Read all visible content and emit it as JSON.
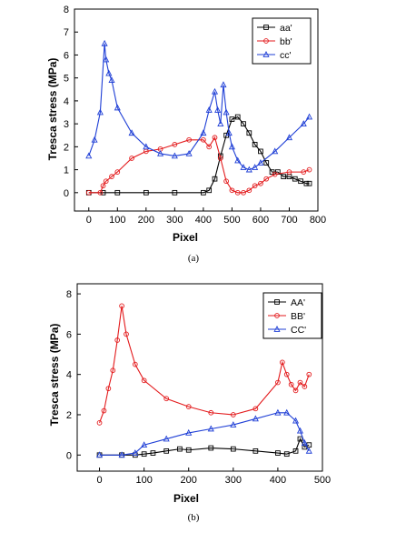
{
  "panels": [
    {
      "caption": "(a)",
      "legend_entries": [
        "aa'",
        "bb'",
        "cc'"
      ]
    },
    {
      "caption": "(b)",
      "legend_entries": [
        "AA'",
        "BB'",
        "CC'"
      ]
    }
  ],
  "colors": {
    "series_1": "#000000",
    "series_2": "#e31a1c",
    "series_3": "#1f3fd6",
    "connector": "#00c000"
  },
  "chart_data": [
    {
      "type": "line",
      "title": "",
      "xlabel": "Pixel",
      "ylabel": "Tresca stress (MPa)",
      "xlim": [
        -50,
        800
      ],
      "ylim": [
        -0.8,
        8
      ],
      "xticks": [
        0,
        100,
        200,
        300,
        400,
        500,
        600,
        700,
        800
      ],
      "yticks": [
        0,
        1,
        2,
        3,
        4,
        5,
        6,
        7,
        8
      ],
      "grid": false,
      "legend": "top-right",
      "series": [
        {
          "name": "aa'",
          "color": "#000000",
          "marker": "square",
          "x": [
            0,
            50,
            100,
            200,
            300,
            400,
            420,
            440,
            460,
            480,
            500,
            520,
            540,
            560,
            580,
            600,
            620,
            640,
            660,
            680,
            700,
            720,
            740,
            760,
            770
          ],
          "y": [
            0,
            0,
            0,
            0,
            0,
            0,
            0.1,
            0.6,
            1.6,
            2.5,
            3.2,
            3.3,
            3.0,
            2.6,
            2.1,
            1.8,
            1.3,
            0.9,
            0.9,
            0.7,
            0.7,
            0.6,
            0.5,
            0.4,
            0.4
          ]
        },
        {
          "name": "bb'",
          "color": "#e31a1c",
          "marker": "circle",
          "x": [
            0,
            40,
            50,
            60,
            80,
            100,
            150,
            200,
            250,
            300,
            350,
            400,
            420,
            440,
            460,
            480,
            500,
            520,
            540,
            560,
            580,
            600,
            620,
            650,
            700,
            750,
            770
          ],
          "y": [
            0,
            0,
            0.3,
            0.5,
            0.7,
            0.9,
            1.5,
            1.8,
            1.9,
            2.1,
            2.3,
            2.3,
            2.0,
            2.4,
            1.5,
            0.5,
            0.1,
            0,
            0,
            0.1,
            0.3,
            0.4,
            0.6,
            0.8,
            0.9,
            0.9,
            1.0
          ]
        },
        {
          "name": "cc'",
          "color": "#1f3fd6",
          "marker": "triangle",
          "x": [
            0,
            20,
            40,
            55,
            60,
            70,
            80,
            100,
            150,
            200,
            250,
            300,
            350,
            400,
            420,
            440,
            450,
            460,
            470,
            480,
            490,
            500,
            520,
            540,
            560,
            580,
            600,
            650,
            700,
            750,
            770
          ],
          "y": [
            1.6,
            2.3,
            3.5,
            6.5,
            5.8,
            5.2,
            4.9,
            3.7,
            2.6,
            2.0,
            1.7,
            1.6,
            1.7,
            2.6,
            3.6,
            4.4,
            3.6,
            3.0,
            4.7,
            3.5,
            2.6,
            2.0,
            1.4,
            1.1,
            1.0,
            1.1,
            1.3,
            1.8,
            2.4,
            3.0,
            3.3
          ]
        }
      ]
    },
    {
      "type": "line",
      "title": "",
      "xlabel": "Pixel",
      "ylabel": "Tresca stress (MPa)",
      "xlim": [
        -50,
        500
      ],
      "ylim": [
        -0.8,
        8.5
      ],
      "xticks": [
        0,
        100,
        200,
        300,
        400,
        500
      ],
      "yticks": [
        0,
        2,
        4,
        6,
        8
      ],
      "grid": false,
      "legend": "top-right",
      "series": [
        {
          "name": "AA'",
          "color": "#000000",
          "marker": "square",
          "x": [
            0,
            50,
            80,
            100,
            120,
            150,
            180,
            200,
            250,
            300,
            350,
            400,
            420,
            440,
            450,
            460,
            470
          ],
          "y": [
            0,
            0,
            0,
            0.05,
            0.1,
            0.2,
            0.3,
            0.25,
            0.35,
            0.3,
            0.2,
            0.1,
            0.05,
            0.2,
            0.8,
            0.4,
            0.5
          ]
        },
        {
          "name": "BB'",
          "color": "#e31a1c",
          "marker": "circle",
          "x": [
            0,
            10,
            20,
            30,
            40,
            50,
            60,
            80,
            100,
            150,
            200,
            250,
            300,
            350,
            400,
            410,
            420,
            430,
            440,
            450,
            460,
            470
          ],
          "y": [
            1.6,
            2.2,
            3.3,
            4.2,
            5.7,
            7.4,
            6.0,
            4.5,
            3.7,
            2.8,
            2.4,
            2.1,
            2.0,
            2.3,
            3.6,
            4.6,
            4.0,
            3.5,
            3.2,
            3.6,
            3.4,
            4.0
          ]
        },
        {
          "name": "CC'",
          "color": "#1f3fd6",
          "marker": "triangle",
          "x": [
            0,
            50,
            80,
            100,
            150,
            200,
            250,
            300,
            350,
            400,
            420,
            440,
            450,
            460,
            470
          ],
          "y": [
            0,
            0,
            0.1,
            0.5,
            0.8,
            1.1,
            1.3,
            1.5,
            1.8,
            2.1,
            2.1,
            1.7,
            1.2,
            0.6,
            0.2
          ]
        }
      ]
    }
  ]
}
